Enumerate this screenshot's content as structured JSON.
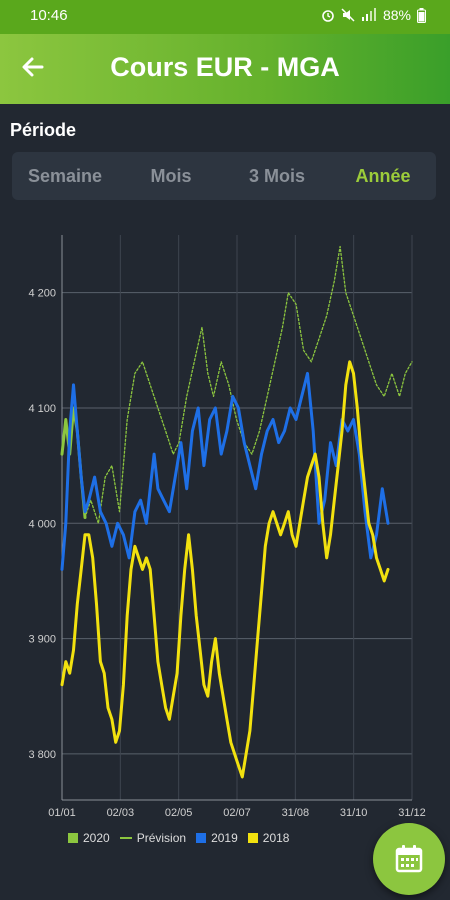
{
  "status_bar": {
    "time": "10:46",
    "battery": "88%",
    "icons": [
      "alarm-icon",
      "mute-icon",
      "signal-icon",
      "battery-icon"
    ]
  },
  "app_bar": {
    "title": "Cours EUR - MGA",
    "back_icon": "arrow-back-icon"
  },
  "period": {
    "label": "Période",
    "tabs": [
      {
        "label": "Semaine",
        "active": false
      },
      {
        "label": "Mois",
        "active": false
      },
      {
        "label": "3 Mois",
        "active": false
      },
      {
        "label": "Année",
        "active": true
      }
    ]
  },
  "fab": {
    "icon": "calendar-icon"
  },
  "chart_data": {
    "type": "line",
    "categories": [
      "01/01",
      "02/03",
      "02/05",
      "02/07",
      "31/08",
      "31/10",
      "31/12"
    ],
    "x_day_range": [
      0,
      365
    ],
    "ylim": [
      3760,
      4250
    ],
    "yticks": [
      "3 800",
      "3 900",
      "4 000",
      "4 100",
      "4 200"
    ],
    "ytick_values": [
      3800,
      3900,
      4000,
      4100,
      4200
    ],
    "grid": true,
    "legend_position": "bottom",
    "series": [
      {
        "name": "2020",
        "color": "#8cc63f",
        "style": "solid",
        "points": [
          [
            0,
            4060
          ],
          [
            4,
            4090
          ],
          [
            8,
            4060
          ],
          [
            12,
            4100
          ],
          [
            16,
            4080
          ],
          [
            20,
            4040
          ],
          [
            24,
            4005
          ]
        ]
      },
      {
        "name": "Prévision",
        "color": "#8cc63f",
        "style": "dashed",
        "points": [
          [
            24,
            4005
          ],
          [
            30,
            4020
          ],
          [
            38,
            4000
          ],
          [
            45,
            4040
          ],
          [
            52,
            4050
          ],
          [
            60,
            4010
          ],
          [
            68,
            4090
          ],
          [
            76,
            4130
          ],
          [
            84,
            4140
          ],
          [
            92,
            4120
          ],
          [
            100,
            4100
          ],
          [
            108,
            4080
          ],
          [
            116,
            4060
          ],
          [
            122,
            4070
          ],
          [
            130,
            4110
          ],
          [
            138,
            4140
          ],
          [
            146,
            4170
          ],
          [
            152,
            4130
          ],
          [
            158,
            4110
          ],
          [
            166,
            4140
          ],
          [
            174,
            4120
          ],
          [
            182,
            4090
          ],
          [
            190,
            4070
          ],
          [
            198,
            4060
          ],
          [
            206,
            4080
          ],
          [
            214,
            4110
          ],
          [
            222,
            4140
          ],
          [
            230,
            4170
          ],
          [
            236,
            4200
          ],
          [
            244,
            4190
          ],
          [
            252,
            4150
          ],
          [
            260,
            4140
          ],
          [
            268,
            4160
          ],
          [
            276,
            4180
          ],
          [
            284,
            4210
          ],
          [
            290,
            4240
          ],
          [
            296,
            4200
          ],
          [
            304,
            4180
          ],
          [
            312,
            4160
          ],
          [
            320,
            4140
          ],
          [
            328,
            4120
          ],
          [
            336,
            4110
          ],
          [
            344,
            4130
          ],
          [
            352,
            4110
          ],
          [
            358,
            4130
          ],
          [
            365,
            4140
          ]
        ]
      },
      {
        "name": "2019",
        "color": "#1e6fe6",
        "style": "solid",
        "points": [
          [
            0,
            3960
          ],
          [
            4,
            4000
          ],
          [
            8,
            4080
          ],
          [
            12,
            4120
          ],
          [
            16,
            4080
          ],
          [
            20,
            4040
          ],
          [
            24,
            4010
          ],
          [
            28,
            4020
          ],
          [
            34,
            4040
          ],
          [
            40,
            4010
          ],
          [
            46,
            4000
          ],
          [
            52,
            3980
          ],
          [
            58,
            4000
          ],
          [
            64,
            3990
          ],
          [
            70,
            3970
          ],
          [
            76,
            4010
          ],
          [
            82,
            4020
          ],
          [
            88,
            4000
          ],
          [
            92,
            4030
          ],
          [
            96,
            4060
          ],
          [
            100,
            4030
          ],
          [
            106,
            4020
          ],
          [
            112,
            4010
          ],
          [
            118,
            4040
          ],
          [
            124,
            4070
          ],
          [
            130,
            4030
          ],
          [
            136,
            4080
          ],
          [
            142,
            4100
          ],
          [
            148,
            4050
          ],
          [
            154,
            4090
          ],
          [
            160,
            4100
          ],
          [
            166,
            4060
          ],
          [
            172,
            4080
          ],
          [
            178,
            4110
          ],
          [
            184,
            4100
          ],
          [
            190,
            4070
          ],
          [
            196,
            4050
          ],
          [
            202,
            4030
          ],
          [
            208,
            4060
          ],
          [
            214,
            4080
          ],
          [
            220,
            4090
          ],
          [
            226,
            4070
          ],
          [
            232,
            4080
          ],
          [
            238,
            4100
          ],
          [
            244,
            4090
          ],
          [
            250,
            4110
          ],
          [
            256,
            4130
          ],
          [
            262,
            4080
          ],
          [
            268,
            4000
          ],
          [
            274,
            4020
          ],
          [
            280,
            4070
          ],
          [
            286,
            4050
          ],
          [
            292,
            4090
          ],
          [
            298,
            4080
          ],
          [
            304,
            4090
          ],
          [
            310,
            4060
          ],
          [
            316,
            4010
          ],
          [
            322,
            3970
          ],
          [
            328,
            3990
          ],
          [
            334,
            4030
          ],
          [
            340,
            4000
          ]
        ]
      },
      {
        "name": "2018",
        "color": "#f2e10f",
        "style": "solid",
        "points": [
          [
            0,
            3860
          ],
          [
            4,
            3880
          ],
          [
            8,
            3870
          ],
          [
            12,
            3890
          ],
          [
            16,
            3930
          ],
          [
            20,
            3960
          ],
          [
            24,
            3990
          ],
          [
            28,
            3990
          ],
          [
            32,
            3970
          ],
          [
            36,
            3930
          ],
          [
            40,
            3880
          ],
          [
            44,
            3870
          ],
          [
            48,
            3840
          ],
          [
            52,
            3830
          ],
          [
            56,
            3810
          ],
          [
            60,
            3820
          ],
          [
            64,
            3860
          ],
          [
            68,
            3920
          ],
          [
            72,
            3960
          ],
          [
            76,
            3980
          ],
          [
            80,
            3970
          ],
          [
            84,
            3960
          ],
          [
            88,
            3970
          ],
          [
            92,
            3960
          ],
          [
            96,
            3920
          ],
          [
            100,
            3880
          ],
          [
            104,
            3860
          ],
          [
            108,
            3840
          ],
          [
            112,
            3830
          ],
          [
            116,
            3850
          ],
          [
            120,
            3870
          ],
          [
            124,
            3920
          ],
          [
            128,
            3960
          ],
          [
            132,
            3990
          ],
          [
            136,
            3960
          ],
          [
            140,
            3920
          ],
          [
            144,
            3890
          ],
          [
            148,
            3860
          ],
          [
            152,
            3850
          ],
          [
            156,
            3880
          ],
          [
            160,
            3900
          ],
          [
            164,
            3870
          ],
          [
            168,
            3850
          ],
          [
            172,
            3830
          ],
          [
            176,
            3810
          ],
          [
            180,
            3800
          ],
          [
            184,
            3790
          ],
          [
            188,
            3780
          ],
          [
            192,
            3800
          ],
          [
            196,
            3820
          ],
          [
            200,
            3860
          ],
          [
            204,
            3900
          ],
          [
            208,
            3940
          ],
          [
            212,
            3980
          ],
          [
            216,
            4000
          ],
          [
            220,
            4010
          ],
          [
            224,
            4000
          ],
          [
            228,
            3990
          ],
          [
            232,
            4000
          ],
          [
            236,
            4010
          ],
          [
            240,
            3990
          ],
          [
            244,
            3980
          ],
          [
            248,
            4000
          ],
          [
            252,
            4020
          ],
          [
            256,
            4040
          ],
          [
            260,
            4050
          ],
          [
            264,
            4060
          ],
          [
            268,
            4040
          ],
          [
            272,
            4000
          ],
          [
            276,
            3970
          ],
          [
            280,
            3990
          ],
          [
            284,
            4020
          ],
          [
            288,
            4050
          ],
          [
            292,
            4080
          ],
          [
            296,
            4120
          ],
          [
            300,
            4140
          ],
          [
            304,
            4130
          ],
          [
            308,
            4100
          ],
          [
            312,
            4060
          ],
          [
            316,
            4030
          ],
          [
            320,
            4000
          ],
          [
            324,
            3990
          ],
          [
            328,
            3970
          ],
          [
            332,
            3960
          ],
          [
            336,
            3950
          ],
          [
            340,
            3960
          ]
        ]
      }
    ]
  }
}
